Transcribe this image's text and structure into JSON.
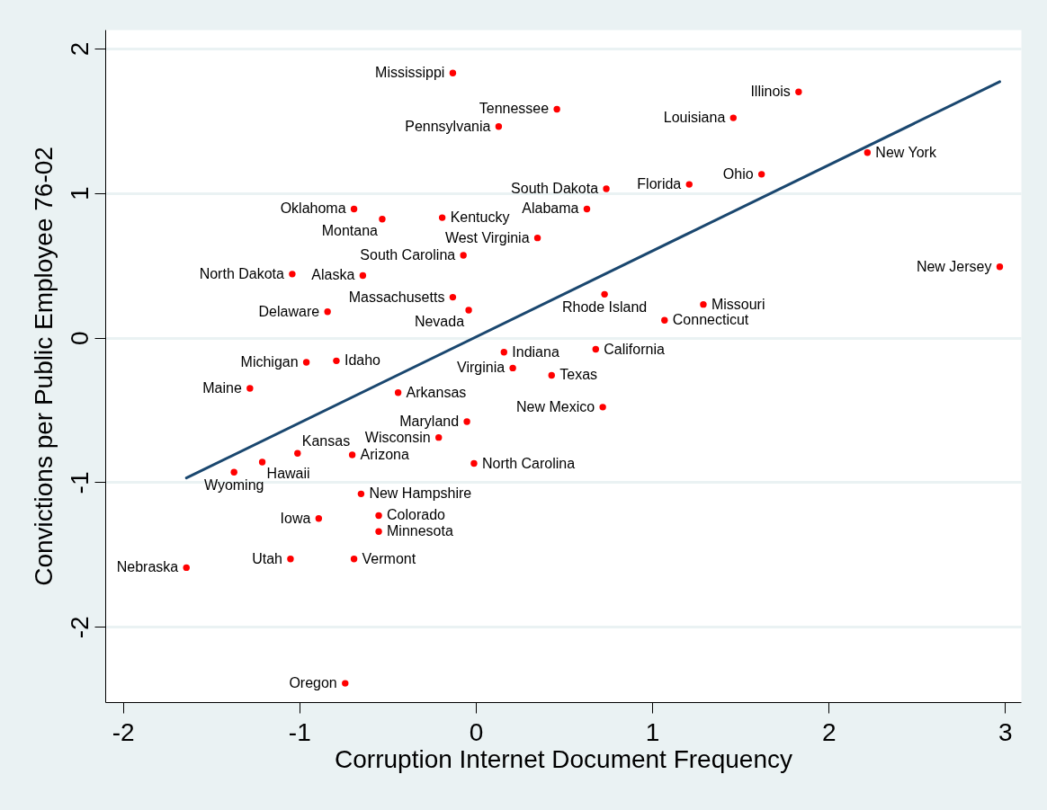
{
  "chart_data": {
    "type": "scatter",
    "xlabel": "Corruption Internet Document Frequency",
    "ylabel": "Convictions per Public Employee 76-02",
    "xlim": [
      -2.1,
      3.09
    ],
    "ylim": [
      -2.52,
      2.13
    ],
    "xticks": [
      -2,
      -1,
      0,
      1,
      2,
      3
    ],
    "yticks": [
      -2,
      -1,
      0,
      1,
      2
    ],
    "grid": "y",
    "series": [
      {
        "color": "#ff0000",
        "marker": "circle",
        "x": [
          -0.13,
          0.46,
          0.13,
          1.83,
          1.46,
          2.22,
          1.62,
          1.21,
          0.74,
          -0.69,
          0.63,
          -0.19,
          -0.53,
          0.35,
          -0.07,
          2.97,
          -1.04,
          -0.64,
          0.73,
          -0.13,
          1.29,
          -0.04,
          -0.84,
          1.07,
          0.68,
          0.16,
          -0.79,
          -0.96,
          0.21,
          0.43,
          -1.28,
          -0.44,
          0.72,
          -0.05,
          -0.21,
          -1.01,
          -0.7,
          -1.21,
          -0.01,
          -1.37,
          -0.65,
          -0.55,
          -0.89,
          -0.55,
          -0.69,
          -1.05,
          -1.64,
          -0.74
        ],
        "values": [
          1.83,
          1.58,
          1.46,
          1.7,
          1.52,
          1.28,
          1.13,
          1.06,
          1.03,
          0.89,
          0.89,
          0.83,
          0.82,
          0.69,
          0.57,
          0.49,
          0.44,
          0.43,
          0.3,
          0.28,
          0.23,
          0.19,
          0.18,
          0.12,
          -0.08,
          -0.1,
          -0.16,
          -0.17,
          -0.21,
          -0.26,
          -0.35,
          -0.38,
          -0.48,
          -0.58,
          -0.69,
          -0.8,
          -0.81,
          -0.86,
          -0.87,
          -0.93,
          -1.08,
          -1.23,
          -1.25,
          -1.34,
          -1.53,
          -1.53,
          -1.59,
          -2.39
        ],
        "value_labels": [
          "Mississippi",
          "Tennessee",
          "Pennsylvania",
          "Illinois",
          "Louisiana",
          "New York",
          "Ohio",
          "Florida",
          "South Dakota",
          "Oklahoma",
          "Alabama",
          "Kentucky",
          "Montana",
          "West Virginia",
          "South Carolina",
          "New Jersey",
          "North Dakota",
          "Alaska",
          "Rhode Island",
          "Massachusetts",
          "Missouri",
          "Nevada",
          "Delaware",
          "Connecticut",
          "California",
          "Indiana",
          "Idaho",
          "Michigan",
          "Virginia",
          "Texas",
          "Maine",
          "Arkansas",
          "New Mexico",
          "Maryland",
          "Wisconsin",
          "Kansas",
          "Arizona",
          "Hawaii",
          "North Carolina",
          "Wyoming",
          "New Hampshire",
          "Colorado",
          "Iowa",
          "Minnesota",
          "Vermont",
          "Utah",
          "Nebraska",
          "Oregon"
        ]
      },
      {
        "type": "line",
        "color": "#1a476f",
        "x": [
          -1.64,
          2.97
        ],
        "values": [
          -0.97,
          1.77
        ]
      }
    ]
  }
}
